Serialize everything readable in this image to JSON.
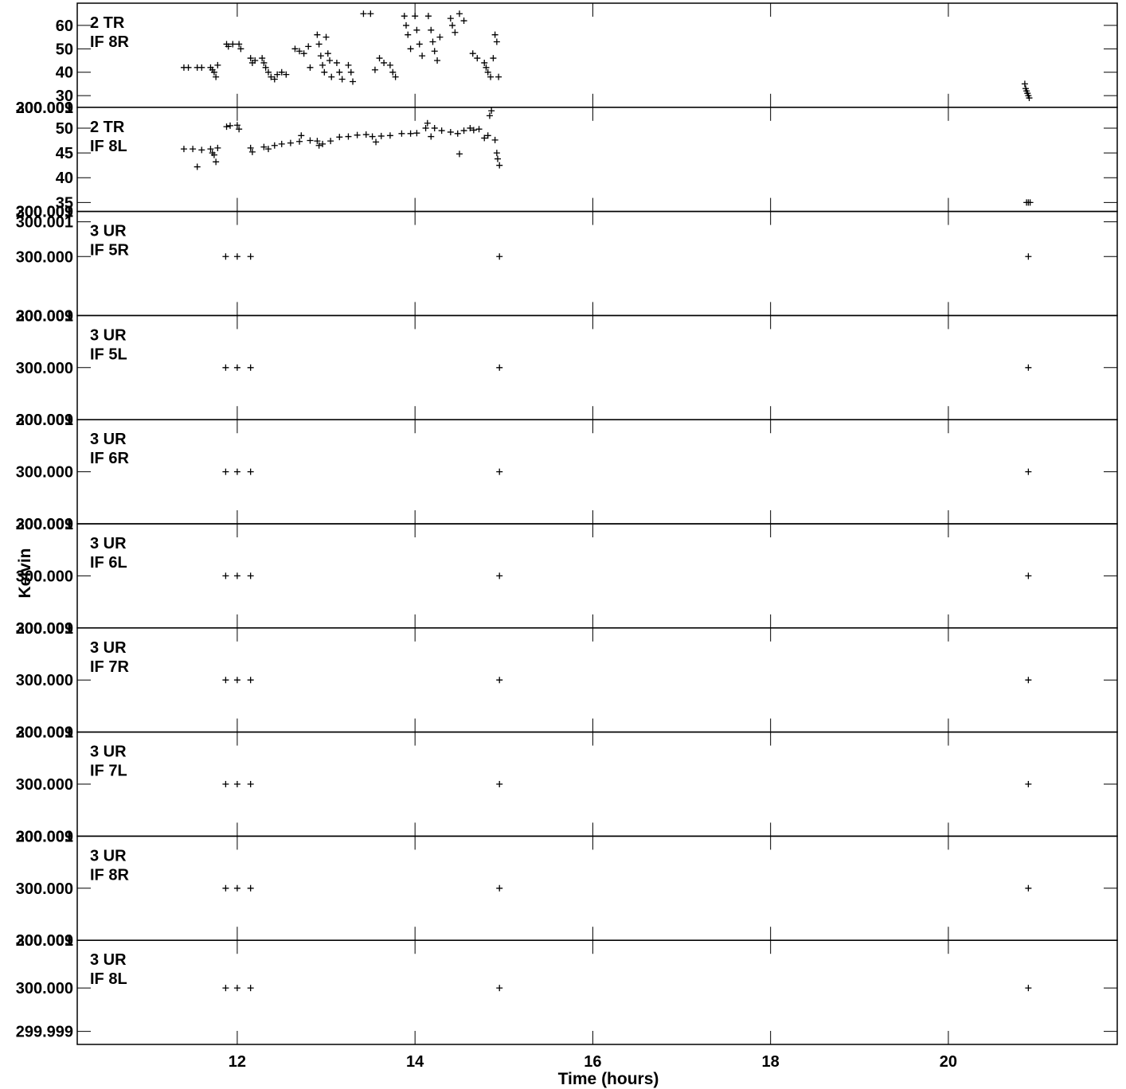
{
  "chart_data": {
    "type": "scatter",
    "xlabel": "Time (hours)",
    "ylabel": "Kelvin",
    "xlim": [
      10.2,
      21.9
    ],
    "x_ticks": [
      12,
      14,
      16,
      18,
      20
    ],
    "x_tick_labels": [
      "12",
      "14",
      "16",
      "18",
      "20"
    ],
    "marker": "plus",
    "color": "#000000",
    "panels": [
      {
        "label1": "2 TR",
        "label2": "IF 8R",
        "ylim": [
          25,
          69.5
        ],
        "y_ticks": [
          30,
          40,
          50,
          60
        ],
        "y_tick_labels": [
          "30",
          "40",
          "50",
          "60"
        ],
        "points": [
          [
            11.4,
            42
          ],
          [
            11.45,
            42
          ],
          [
            11.55,
            42
          ],
          [
            11.6,
            42
          ],
          [
            11.7,
            42
          ],
          [
            11.72,
            41
          ],
          [
            11.74,
            40
          ],
          [
            11.76,
            38
          ],
          [
            11.78,
            43
          ],
          [
            11.88,
            52
          ],
          [
            11.9,
            51
          ],
          [
            11.95,
            52
          ],
          [
            12.02,
            52
          ],
          [
            12.04,
            50
          ],
          [
            12.15,
            46
          ],
          [
            12.17,
            44
          ],
          [
            12.2,
            45
          ],
          [
            12.28,
            46
          ],
          [
            12.3,
            44
          ],
          [
            12.32,
            42
          ],
          [
            12.35,
            40
          ],
          [
            12.38,
            38
          ],
          [
            12.42,
            37
          ],
          [
            12.45,
            39
          ],
          [
            12.5,
            40
          ],
          [
            12.55,
            39
          ],
          [
            12.65,
            50
          ],
          [
            12.7,
            49
          ],
          [
            12.75,
            48
          ],
          [
            12.8,
            51
          ],
          [
            12.82,
            42
          ],
          [
            12.9,
            56
          ],
          [
            12.92,
            52
          ],
          [
            12.94,
            47
          ],
          [
            12.96,
            43
          ],
          [
            12.98,
            40
          ],
          [
            13.0,
            55
          ],
          [
            13.02,
            48
          ],
          [
            13.04,
            45
          ],
          [
            13.06,
            38
          ],
          [
            13.12,
            44
          ],
          [
            13.15,
            40
          ],
          [
            13.18,
            37
          ],
          [
            13.25,
            43
          ],
          [
            13.28,
            40
          ],
          [
            13.3,
            36
          ],
          [
            13.42,
            65
          ],
          [
            13.5,
            65
          ],
          [
            13.55,
            41
          ],
          [
            13.6,
            46
          ],
          [
            13.65,
            44
          ],
          [
            13.72,
            43
          ],
          [
            13.75,
            40
          ],
          [
            13.78,
            38
          ],
          [
            13.88,
            64
          ],
          [
            13.9,
            60
          ],
          [
            13.92,
            56
          ],
          [
            13.95,
            50
          ],
          [
            14.0,
            64
          ],
          [
            14.02,
            58
          ],
          [
            14.05,
            52
          ],
          [
            14.08,
            47
          ],
          [
            14.15,
            64
          ],
          [
            14.18,
            58
          ],
          [
            14.2,
            53
          ],
          [
            14.22,
            49
          ],
          [
            14.25,
            45
          ],
          [
            14.28,
            55
          ],
          [
            14.4,
            63
          ],
          [
            14.42,
            60
          ],
          [
            14.45,
            57
          ],
          [
            14.5,
            65
          ],
          [
            14.55,
            62
          ],
          [
            14.65,
            48
          ],
          [
            14.7,
            46
          ],
          [
            14.78,
            44
          ],
          [
            14.8,
            42
          ],
          [
            14.82,
            40
          ],
          [
            14.85,
            38
          ],
          [
            14.88,
            46
          ],
          [
            14.9,
            56
          ],
          [
            14.92,
            53
          ],
          [
            14.94,
            38
          ],
          [
            20.86,
            35
          ],
          [
            20.87,
            33
          ],
          [
            20.88,
            32
          ],
          [
            20.89,
            31
          ],
          [
            20.9,
            30
          ],
          [
            20.91,
            29
          ]
        ]
      },
      {
        "label1": "2 TR",
        "label2": "IF 8L",
        "ylim": [
          33.2,
          54.2
        ],
        "y_ticks": [
          35,
          40,
          45,
          50
        ],
        "y_tick_labels": [
          "35",
          "40",
          "45",
          "50"
        ],
        "points": [
          [
            11.4,
            45.8
          ],
          [
            11.5,
            45.8
          ],
          [
            11.55,
            42.2
          ],
          [
            11.6,
            45.6
          ],
          [
            11.7,
            45.8
          ],
          [
            11.72,
            45
          ],
          [
            11.74,
            44.6
          ],
          [
            11.76,
            43.2
          ],
          [
            11.78,
            46
          ],
          [
            11.88,
            50.3
          ],
          [
            11.92,
            50.5
          ],
          [
            12.0,
            50.6
          ],
          [
            12.02,
            49.8
          ],
          [
            12.15,
            46
          ],
          [
            12.17,
            45.2
          ],
          [
            12.3,
            46.2
          ],
          [
            12.35,
            45.8
          ],
          [
            12.42,
            46.5
          ],
          [
            12.5,
            46.8
          ],
          [
            12.6,
            47
          ],
          [
            12.7,
            47.3
          ],
          [
            12.72,
            48.5
          ],
          [
            12.82,
            47.5
          ],
          [
            12.9,
            47.4
          ],
          [
            12.92,
            46.5
          ],
          [
            12.96,
            46.8
          ],
          [
            13.05,
            47.4
          ],
          [
            13.15,
            48.2
          ],
          [
            13.25,
            48.3
          ],
          [
            13.35,
            48.6
          ],
          [
            13.45,
            48.7
          ],
          [
            13.52,
            48.3
          ],
          [
            13.56,
            47.2
          ],
          [
            13.62,
            48.4
          ],
          [
            13.72,
            48.5
          ],
          [
            13.85,
            48.9
          ],
          [
            13.95,
            48.9
          ],
          [
            14.02,
            49
          ],
          [
            14.12,
            50
          ],
          [
            14.14,
            51
          ],
          [
            14.18,
            48.3
          ],
          [
            14.22,
            50
          ],
          [
            14.3,
            49.5
          ],
          [
            14.4,
            49.2
          ],
          [
            14.48,
            48.9
          ],
          [
            14.5,
            44.8
          ],
          [
            14.55,
            49.5
          ],
          [
            14.62,
            50
          ],
          [
            14.66,
            49.6
          ],
          [
            14.72,
            49.8
          ],
          [
            14.78,
            48
          ],
          [
            14.82,
            48.5
          ],
          [
            14.84,
            52.5
          ],
          [
            14.86,
            53.5
          ],
          [
            14.9,
            47.6
          ],
          [
            14.92,
            45
          ],
          [
            14.93,
            43.8
          ],
          [
            14.95,
            42.5
          ],
          [
            20.88,
            35
          ],
          [
            20.9,
            35
          ],
          [
            20.92,
            35
          ]
        ]
      },
      {
        "label1": "3 UR",
        "label2": "IF 5R",
        "ylim": [
          299.9983,
          300.0013
        ],
        "y_ticks": [
          300.0,
          300.001
        ],
        "y_tick_labels": [
          "300.000",
          "300.001"
        ],
        "points": [
          [
            11.87,
            300.0
          ],
          [
            12.0,
            300.0
          ],
          [
            12.15,
            300.0
          ],
          [
            14.95,
            300.0
          ],
          [
            20.9,
            300.0
          ]
        ]
      },
      {
        "label1": "3 UR",
        "label2": "IF 5L",
        "ylim": [
          299.9987,
          300.0013
        ],
        "y_ticks": [
          300.0
        ],
        "y_tick_labels": [
          "300.000"
        ],
        "points": [
          [
            11.87,
            300.0
          ],
          [
            12.0,
            300.0
          ],
          [
            12.15,
            300.0
          ],
          [
            14.95,
            300.0
          ],
          [
            20.9,
            300.0
          ]
        ]
      },
      {
        "label1": "3 UR",
        "label2": "IF 6R",
        "ylim": [
          299.9987,
          300.0013
        ],
        "y_ticks": [
          300.0
        ],
        "y_tick_labels": [
          "300.000"
        ],
        "points": [
          [
            11.87,
            300.0
          ],
          [
            12.0,
            300.0
          ],
          [
            12.15,
            300.0
          ],
          [
            14.95,
            300.0
          ],
          [
            20.9,
            300.0
          ]
        ]
      },
      {
        "label1": "3 UR",
        "label2": "IF 6L",
        "ylim": [
          299.9987,
          300.0013
        ],
        "y_ticks": [
          300.0
        ],
        "y_tick_labels": [
          "300.000"
        ],
        "points": [
          [
            11.87,
            300.0
          ],
          [
            12.0,
            300.0
          ],
          [
            12.15,
            300.0
          ],
          [
            14.95,
            300.0
          ],
          [
            20.9,
            300.0
          ]
        ]
      },
      {
        "label1": "3 UR",
        "label2": "IF 7R",
        "ylim": [
          299.9987,
          300.0013
        ],
        "y_ticks": [
          300.0
        ],
        "y_tick_labels": [
          "300.000"
        ],
        "points": [
          [
            11.87,
            300.0
          ],
          [
            12.0,
            300.0
          ],
          [
            12.15,
            300.0
          ],
          [
            14.95,
            300.0
          ],
          [
            20.9,
            300.0
          ]
        ]
      },
      {
        "label1": "3 UR",
        "label2": "IF 7L",
        "ylim": [
          299.9987,
          300.0013
        ],
        "y_ticks": [
          300.0
        ],
        "y_tick_labels": [
          "300.000"
        ],
        "points": [
          [
            11.87,
            300.0
          ],
          [
            12.0,
            300.0
          ],
          [
            12.15,
            300.0
          ],
          [
            14.95,
            300.0
          ],
          [
            20.9,
            300.0
          ]
        ]
      },
      {
        "label1": "3 UR",
        "label2": "IF 8R",
        "ylim": [
          299.9987,
          300.0013
        ],
        "y_ticks": [
          300.0
        ],
        "y_tick_labels": [
          "300.000"
        ],
        "points": [
          [
            11.87,
            300.0
          ],
          [
            12.0,
            300.0
          ],
          [
            12.15,
            300.0
          ],
          [
            14.95,
            300.0
          ],
          [
            20.9,
            300.0
          ]
        ]
      },
      {
        "label1": "3 UR",
        "label2": "IF 8L",
        "ylim": [
          299.9987,
          300.0011
        ],
        "y_ticks": [
          299.999,
          300.0
        ],
        "y_tick_labels": [
          "299.999",
          "300.000"
        ],
        "points": [
          [
            11.87,
            300.0
          ],
          [
            12.0,
            300.0
          ],
          [
            12.15,
            300.0
          ],
          [
            14.95,
            300.0
          ],
          [
            20.9,
            300.0
          ]
        ]
      }
    ],
    "boundary_tick_labels": [
      "200.009",
      "300.001"
    ]
  }
}
